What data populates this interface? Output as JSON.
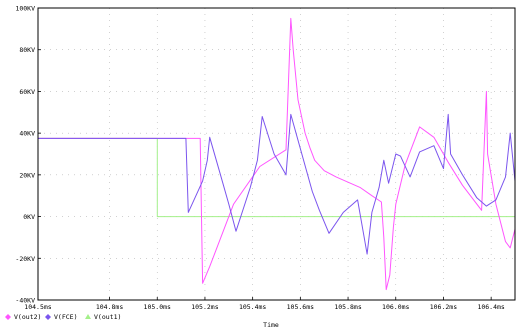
{
  "chart_data": {
    "type": "line",
    "xlabel": "Time",
    "x_unit": "ms",
    "xlim": [
      104.5,
      106.5
    ],
    "ylim": [
      -400,
      1000
    ],
    "ylabel": "",
    "grid": true,
    "legend_position": "bottom-left",
    "x_ticks": [
      {
        "value": 104.5,
        "label": "104.5ms"
      },
      {
        "value": 104.8,
        "label": "104.8ms"
      },
      {
        "value": 105.0,
        "label": "105.0ms"
      },
      {
        "value": 105.2,
        "label": "105.2ms"
      },
      {
        "value": 105.4,
        "label": "105.4ms"
      },
      {
        "value": 105.6,
        "label": "105.6ms"
      },
      {
        "value": 105.8,
        "label": "105.8ms"
      },
      {
        "value": 106.0,
        "label": "106.0ms"
      },
      {
        "value": 106.2,
        "label": "106.2ms"
      },
      {
        "value": 106.4,
        "label": "106.4ms"
      }
    ],
    "y_ticks": [
      {
        "value": 1000,
        "label": "100KV"
      },
      {
        "value": 800,
        "label": "80KV"
      },
      {
        "value": 600,
        "label": "60KV"
      },
      {
        "value": 400,
        "label": "40KV"
      },
      {
        "value": 200,
        "label": "20KV"
      },
      {
        "value": 0,
        "label": "0KV"
      },
      {
        "value": -200,
        "label": "-20KV"
      },
      {
        "value": -400,
        "label": "-40KV"
      }
    ],
    "series": [
      {
        "name": "V(out2)",
        "color": "#ff55ff",
        "x": [
          104.5,
          105.14,
          105.14,
          105.18,
          105.19,
          105.22,
          105.32,
          105.43,
          105.54,
          105.56,
          105.57,
          105.59,
          105.62,
          105.64,
          105.66,
          105.7,
          105.75,
          105.85,
          105.9,
          105.94,
          105.95,
          105.96,
          105.975,
          105.99,
          106.0,
          106.04,
          106.1,
          106.16,
          106.22,
          106.28,
          106.34,
          106.36,
          106.38,
          106.385,
          106.42,
          106.46,
          106.48,
          106.5
        ],
        "y": [
          375,
          375,
          375,
          375,
          -320,
          -240,
          60,
          240,
          320,
          950,
          800,
          560,
          400,
          330,
          270,
          220,
          190,
          140,
          100,
          70,
          -100,
          -350,
          -280,
          -50,
          60,
          250,
          430,
          380,
          260,
          150,
          60,
          30,
          600,
          300,
          60,
          -120,
          -150,
          -60
        ]
      },
      {
        "name": "V(FCE)",
        "color": "#7b55ee",
        "x": [
          104.5,
          105.0,
          105.12,
          105.13,
          105.19,
          105.21,
          105.22,
          105.26,
          105.3,
          105.33,
          105.39,
          105.42,
          105.44,
          105.49,
          105.53,
          105.54,
          105.56,
          105.65,
          105.68,
          105.72,
          105.78,
          105.84,
          105.88,
          105.9,
          105.93,
          105.95,
          105.97,
          106.0,
          106.02,
          106.06,
          106.1,
          106.16,
          106.2,
          106.22,
          106.23,
          106.28,
          106.34,
          106.38,
          106.42,
          106.46,
          106.48,
          106.5
        ],
        "y": [
          375,
          375,
          375,
          20,
          170,
          270,
          380,
          220,
          60,
          -70,
          140,
          270,
          480,
          300,
          220,
          200,
          490,
          120,
          30,
          -80,
          20,
          80,
          -180,
          20,
          140,
          270,
          160,
          300,
          290,
          190,
          310,
          340,
          230,
          490,
          300,
          200,
          90,
          50,
          80,
          190,
          400,
          170
        ]
      },
      {
        "name": "V(out1)",
        "color": "#a4f08a",
        "x": [
          104.5,
          105.0,
          105.0,
          106.5
        ],
        "y": [
          375,
          375,
          0,
          0
        ]
      }
    ]
  }
}
